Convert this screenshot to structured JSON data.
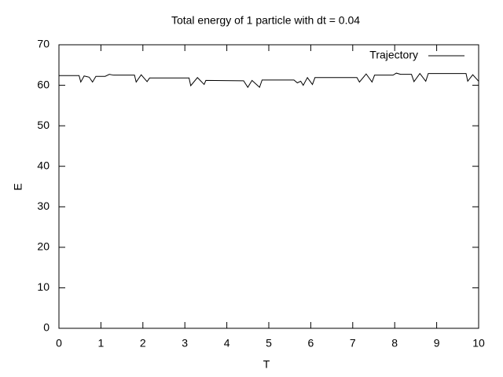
{
  "chart_data": {
    "type": "line",
    "title": "Total energy of 1 particle with dt = 0.04",
    "xlabel": "T",
    "ylabel": "E",
    "x": [
      0,
      0.48,
      0.52,
      0.6,
      0.72,
      0.8,
      0.88,
      1.1,
      1.2,
      1.3,
      1.8,
      1.84,
      1.96,
      2.1,
      2.16,
      3.1,
      3.14,
      3.3,
      3.46,
      3.5,
      4.4,
      4.5,
      4.6,
      4.78,
      4.84,
      5.6,
      5.68,
      5.76,
      5.82,
      5.92,
      6.04,
      6.1,
      7.1,
      7.16,
      7.32,
      7.46,
      7.52,
      7.96,
      8.04,
      8.14,
      8.4,
      8.46,
      8.6,
      8.74,
      8.8,
      9.7,
      9.74,
      9.86,
      10
    ],
    "series": [
      {
        "name": "Trajectory",
        "color": "#000000",
        "values": [
          62.4,
          62.4,
          60.8,
          62.3,
          62.0,
          60.8,
          62.2,
          62.2,
          62.7,
          62.5,
          62.5,
          60.8,
          62.6,
          60.9,
          61.8,
          61.8,
          59.9,
          61.9,
          60.2,
          61.2,
          61.1,
          59.5,
          61.2,
          59.5,
          61.3,
          61.3,
          60.6,
          61.0,
          60.0,
          61.9,
          60.2,
          61.9,
          61.9,
          60.8,
          62.8,
          60.8,
          62.5,
          62.5,
          63.0,
          62.7,
          62.7,
          60.9,
          62.9,
          61.0,
          62.9,
          62.9,
          61.0,
          62.6,
          61.0
        ]
      }
    ],
    "xlim": [
      0,
      10
    ],
    "xticks": [
      0,
      1,
      2,
      3,
      4,
      5,
      6,
      7,
      8,
      9,
      10
    ],
    "ylim": [
      0,
      70
    ],
    "yticks": [
      0,
      10,
      20,
      30,
      40,
      50,
      60,
      70
    ],
    "legend": "upper right",
    "grid": false
  }
}
